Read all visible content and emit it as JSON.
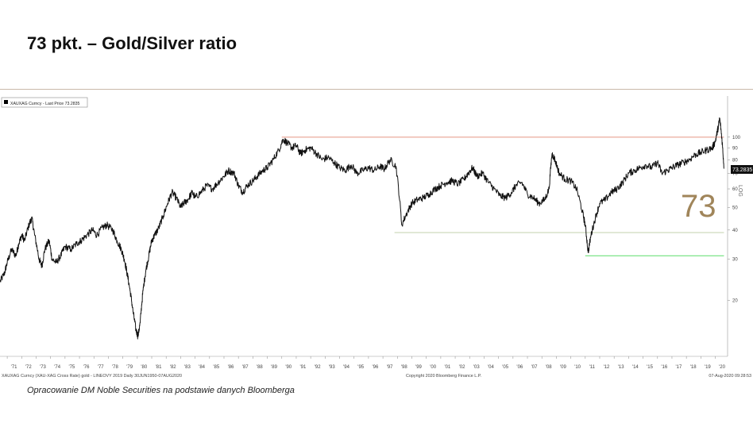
{
  "slide": {
    "title": "73 pkt. – Gold/Silver ratio",
    "source_note": "Opracowanie DM Noble Securities na podstawie danych Bloomberga"
  },
  "chart_data": {
    "type": "line",
    "ticker": "XAUXAG",
    "legend": "XAUXAG Curncy - Last Price 73.2835",
    "legend_position": "top-left",
    "last_value_label": "73.2835",
    "big_annotation": "73",
    "axis_scale_label": "LOG",
    "y_scale": "log",
    "ylim": [
      11.5,
      150
    ],
    "xlim": [
      1970.5,
      2020.85
    ],
    "grid": false,
    "y_ticks": [
      20,
      30,
      40,
      50,
      60,
      70,
      80,
      90,
      100
    ],
    "x_ticks": [
      "'71",
      "'72",
      "'73",
      "'74",
      "'75",
      "'76",
      "'77",
      "'78",
      "'79",
      "'80",
      "'81",
      "'82",
      "'83",
      "'84",
      "'85",
      "'86",
      "'87",
      "'88",
      "'89",
      "'90",
      "'91",
      "'92",
      "'93",
      "'94",
      "'95",
      "'96",
      "'97",
      "'98",
      "'99",
      "'00",
      "'01",
      "'02",
      "'03",
      "'04",
      "'05",
      "'06",
      "'07",
      "'08",
      "'09",
      "'10",
      "'11",
      "'12",
      "'13",
      "'14",
      "'15",
      "'16",
      "'17",
      "'18",
      "'19",
      "'20"
    ],
    "footer_left": "XAUXAG Curncy (XAU-XAG Cross Rate) gold - LINEOVY 2019  Daily 30JUN1950-07AUG2020",
    "footer_center": "Copyright 2020 Bloomberg Finance L.P.",
    "footer_right": "07-Aug-2020 09:28:53",
    "reference_lines": [
      {
        "value": 100,
        "from": 1990.0,
        "to": 2020.6,
        "color": "#e8a092"
      },
      {
        "value": 39,
        "from": 1997.8,
        "to": 2020.6,
        "color": "#c9d6b6"
      },
      {
        "value": 31,
        "from": 2011.0,
        "to": 2020.6,
        "color": "#6ee07a"
      }
    ],
    "series": [
      {
        "x": [
          1970.5,
          1970.8,
          1971.0,
          1971.3,
          1971.6,
          1971.8,
          1972.0,
          1972.2,
          1972.5,
          1972.7,
          1972.9,
          1973.2,
          1973.4,
          1973.6,
          1973.9,
          1974.1,
          1974.4,
          1974.7,
          1975.0,
          1975.4,
          1975.8,
          1976.1,
          1976.5,
          1976.9,
          1977.2,
          1977.6,
          1977.9,
          1978.3,
          1978.6,
          1978.9,
          1979.1,
          1979.3,
          1979.5,
          1979.7,
          1979.9,
          1980.05,
          1980.2,
          1980.4,
          1980.6,
          1980.8,
          1981.0,
          1981.2,
          1981.5,
          1981.8,
          1982.1,
          1982.4,
          1982.7,
          1983.0,
          1983.2,
          1983.5,
          1983.8,
          1984.0,
          1984.4,
          1984.8,
          1985.2,
          1985.6,
          1986.0,
          1986.3,
          1986.7,
          1987.0,
          1987.3,
          1987.6,
          1988.0,
          1988.3,
          1988.7,
          1989.0,
          1989.4,
          1989.8,
          1990.1,
          1990.4,
          1990.7,
          1991.0,
          1991.3,
          1991.6,
          1992.0,
          1992.4,
          1992.8,
          1993.2,
          1993.6,
          1994.0,
          1994.4,
          1994.8,
          1995.2,
          1995.6,
          1996.0,
          1996.4,
          1996.8,
          1997.1,
          1997.5,
          1997.9,
          1998.3,
          1998.7,
          1999.0,
          1999.4,
          1999.8,
          2000.2,
          2000.6,
          2001.0,
          2001.4,
          2001.8,
          2002.2,
          2002.6,
          2002.9,
          2003.2,
          2003.5,
          2003.9,
          2004.3,
          2004.7,
          2005.1,
          2005.5,
          2005.9,
          2006.2,
          2006.6,
          2007.0,
          2007.4,
          2007.8,
          2008.2,
          2008.5,
          2008.7,
          2008.9,
          2009.2,
          2009.6,
          2010.0,
          2010.4,
          2010.8,
          2011.0,
          2011.2,
          2011.4,
          2011.7,
          2012.0,
          2012.4,
          2012.8,
          2013.2,
          2013.6,
          2014.0,
          2014.4,
          2014.8,
          2015.2,
          2015.6,
          2016.0,
          2016.3,
          2016.7,
          2017.0,
          2017.4,
          2017.8,
          2018.2,
          2018.6,
          2019.0,
          2019.4,
          2019.8,
          2020.0,
          2020.2,
          2020.3,
          2020.45,
          2020.6
        ],
        "y": [
          24,
          26,
          29,
          33,
          31,
          35,
          38,
          36,
          42,
          45,
          38,
          30,
          28,
          33,
          36,
          30,
          29,
          31,
          34,
          33,
          35,
          36,
          38,
          40,
          38,
          41,
          42,
          40,
          36,
          33,
          30,
          26,
          22,
          18,
          15,
          14,
          16,
          22,
          27,
          31,
          36,
          38,
          41,
          46,
          52,
          58,
          55,
          50,
          52,
          54,
          58,
          55,
          58,
          62,
          60,
          64,
          68,
          72,
          70,
          62,
          58,
          62,
          65,
          68,
          72,
          74,
          80,
          88,
          98,
          94,
          90,
          92,
          85,
          88,
          90,
          85,
          80,
          82,
          78,
          74,
          72,
          76,
          70,
          72,
          74,
          72,
          75,
          73,
          80,
          75,
          42,
          48,
          52,
          54,
          55,
          57,
          60,
          62,
          64,
          65,
          63,
          66,
          70,
          74,
          68,
          70,
          64,
          60,
          56,
          55,
          58,
          62,
          64,
          57,
          55,
          52,
          54,
          60,
          85,
          80,
          70,
          66,
          65,
          60,
          48,
          42,
          32,
          38,
          45,
          52,
          54,
          58,
          60,
          64,
          70,
          72,
          74,
          76,
          74,
          78,
          70,
          72,
          74,
          76,
          78,
          80,
          84,
          86,
          88,
          90,
          96,
          110,
          120,
          100,
          73.28
        ]
      }
    ]
  }
}
